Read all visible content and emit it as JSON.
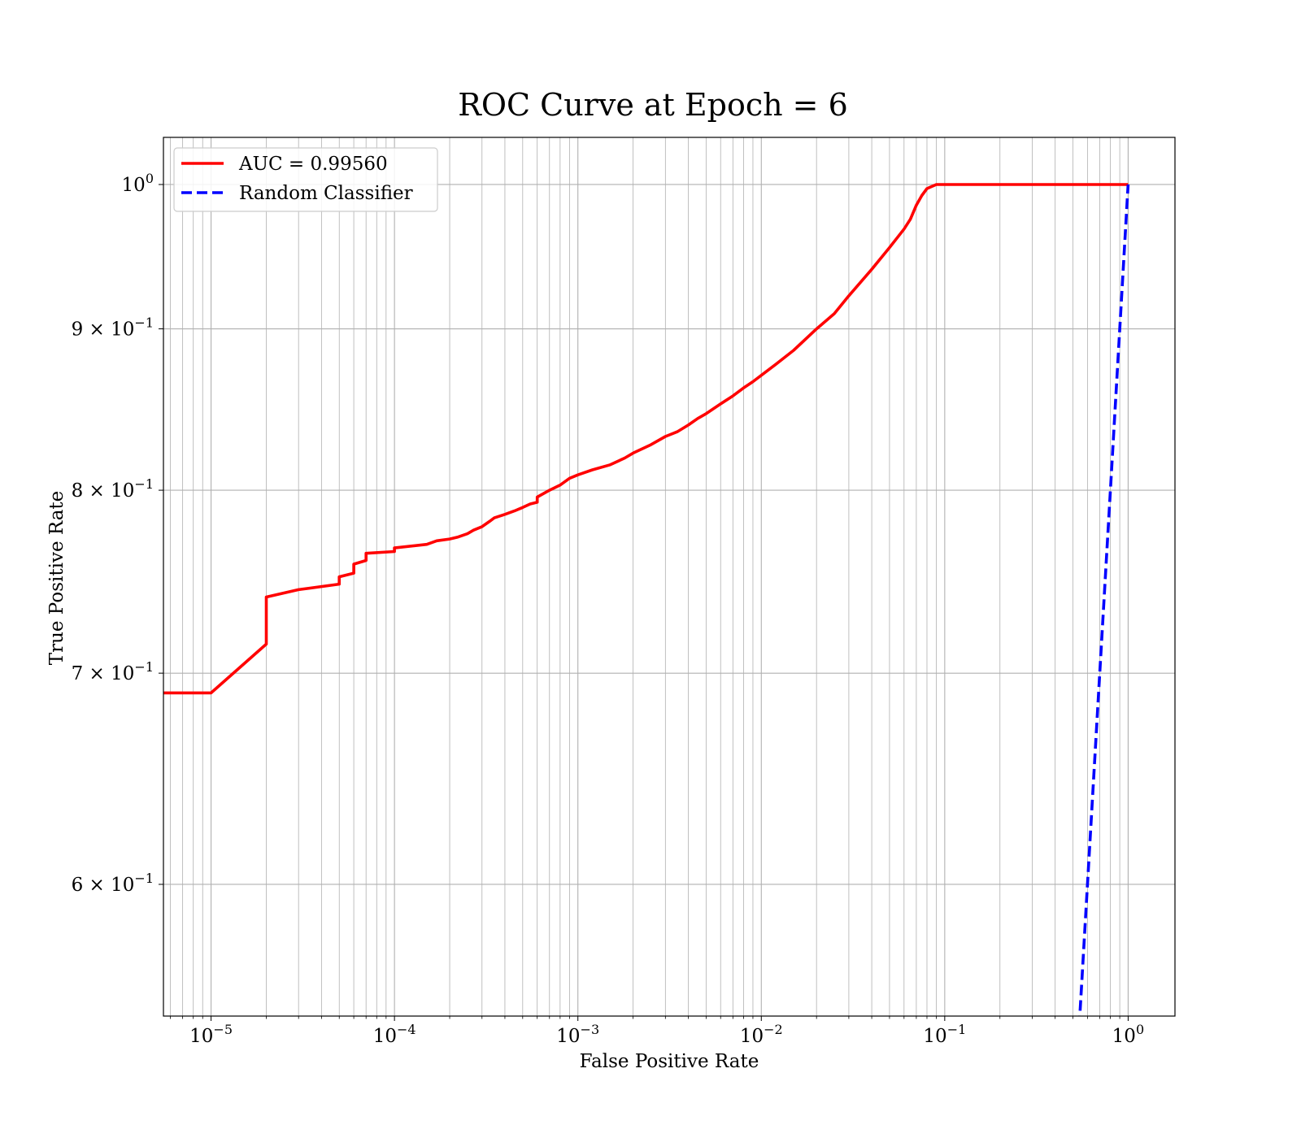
{
  "chart_data": {
    "type": "line",
    "title": "ROC Curve at Epoch = 6",
    "xlabel": "False Positive Rate",
    "ylabel": "True Positive Rate",
    "xscale": "log",
    "yscale": "log",
    "xlim": [
      5.5e-06,
      1.8
    ],
    "ylim": [
      0.545,
      1.035
    ],
    "grid": true,
    "grid_which": "both",
    "legend_position": "top-left",
    "xticks": [
      {
        "value": 1e-05,
        "base": "10",
        "exp": "−5"
      },
      {
        "value": 0.0001,
        "base": "10",
        "exp": "−4"
      },
      {
        "value": 0.001,
        "base": "10",
        "exp": "−3"
      },
      {
        "value": 0.01,
        "base": "10",
        "exp": "−2"
      },
      {
        "value": 0.1,
        "base": "10",
        "exp": "−1"
      },
      {
        "value": 1,
        "base": "10",
        "exp": "0"
      }
    ],
    "yticks": [
      {
        "value": 1.0,
        "base": "10",
        "exp": "0"
      },
      {
        "value": 0.9,
        "base": "9 × 10",
        "exp": "−1"
      },
      {
        "value": 0.8,
        "base": "8 × 10",
        "exp": "−1"
      },
      {
        "value": 0.7,
        "base": "7 × 10",
        "exp": "−1"
      },
      {
        "value": 0.6,
        "base": "6 × 10",
        "exp": "−1"
      }
    ],
    "series": [
      {
        "name": "AUC = 0.99560",
        "color": "#ff0000",
        "style": "solid",
        "x": [
          5.5e-06,
          1e-05,
          2e-05,
          2e-05,
          3e-05,
          5e-05,
          5e-05,
          6e-05,
          6e-05,
          7e-05,
          7e-05,
          0.0001,
          0.0001,
          0.00015,
          0.00017,
          0.0002,
          0.00022,
          0.00025,
          0.00027,
          0.0003,
          0.00033,
          0.00035,
          0.0004,
          0.00045,
          0.0005,
          0.00055,
          0.0006,
          0.0006,
          0.0007,
          0.0008,
          0.0009,
          0.001,
          0.0012,
          0.0015,
          0.0018,
          0.002,
          0.0025,
          0.003,
          0.0035,
          0.004,
          0.0045,
          0.005,
          0.006,
          0.007,
          0.008,
          0.009,
          0.01,
          0.012,
          0.015,
          0.02,
          0.025,
          0.03,
          0.04,
          0.05,
          0.06,
          0.065,
          0.07,
          0.075,
          0.08,
          0.09,
          0.1,
          0.2,
          0.5,
          1.0
        ],
        "y": [
          0.69,
          0.69,
          0.715,
          0.74,
          0.744,
          0.747,
          0.751,
          0.753,
          0.758,
          0.76,
          0.764,
          0.765,
          0.767,
          0.769,
          0.771,
          0.772,
          0.773,
          0.775,
          0.777,
          0.779,
          0.782,
          0.784,
          0.786,
          0.788,
          0.79,
          0.792,
          0.793,
          0.796,
          0.8,
          0.803,
          0.807,
          0.809,
          0.812,
          0.815,
          0.819,
          0.822,
          0.827,
          0.832,
          0.835,
          0.839,
          0.843,
          0.846,
          0.852,
          0.857,
          0.862,
          0.866,
          0.87,
          0.877,
          0.886,
          0.9,
          0.91,
          0.922,
          0.94,
          0.955,
          0.968,
          0.975,
          0.985,
          0.992,
          0.997,
          1.0,
          1.0,
          1.0,
          1.0,
          1.0
        ]
      },
      {
        "name": "Random Classifier",
        "color": "#0000ff",
        "style": "dashed",
        "x": [
          0.5,
          0.6,
          0.7,
          0.8,
          0.9,
          1.0
        ],
        "y": [
          0.5,
          0.6,
          0.7,
          0.8,
          0.9,
          1.0
        ]
      }
    ]
  }
}
